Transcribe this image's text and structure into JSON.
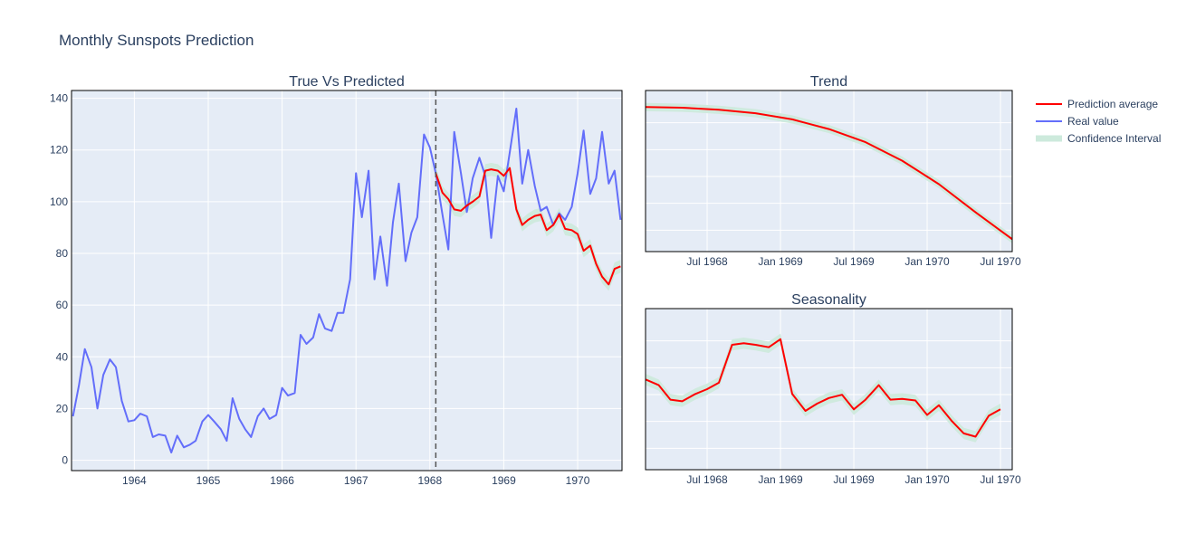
{
  "figure_title": "Monthly Sunspots Prediction",
  "colors": {
    "prediction": "#ff0000",
    "real": "#636efa",
    "confidence": "#cdeadc",
    "plot_bg": "#e5ecf6",
    "grid": "#ffffff",
    "text": "#2a3f5f",
    "cutoff_line": "#555555"
  },
  "legend": {
    "items": [
      {
        "label": "Prediction average",
        "kind": "line",
        "color": "#ff0000"
      },
      {
        "label": "Real value",
        "kind": "line",
        "color": "#636efa"
      },
      {
        "label": "Confidence Interval",
        "kind": "band",
        "color": "#cdeadc"
      }
    ]
  },
  "chart_data": [
    {
      "id": "main",
      "type": "line",
      "title": "True Vs Predicted",
      "xlim": [
        1963.15,
        1970.6
      ],
      "ylim": [
        -4,
        143
      ],
      "x_ticks": [
        {
          "v": 1964,
          "label": "1964"
        },
        {
          "v": 1965,
          "label": "1965"
        },
        {
          "v": 1966,
          "label": "1966"
        },
        {
          "v": 1967,
          "label": "1967"
        },
        {
          "v": 1968,
          "label": "1968"
        },
        {
          "v": 1969,
          "label": "1969"
        },
        {
          "v": 1970,
          "label": "1970"
        }
      ],
      "y_ticks": [
        {
          "v": 0,
          "label": "0"
        },
        {
          "v": 20,
          "label": "20"
        },
        {
          "v": 40,
          "label": "40"
        },
        {
          "v": 60,
          "label": "60"
        },
        {
          "v": 80,
          "label": "80"
        },
        {
          "v": 100,
          "label": "100"
        },
        {
          "v": 120,
          "label": "120"
        },
        {
          "v": 140,
          "label": "140"
        }
      ],
      "cutoff_x": 1968.08,
      "series": [
        {
          "name": "Real value",
          "style": "real",
          "points": [
            [
              1963.17,
              17
            ],
            [
              1963.25,
              29
            ],
            [
              1963.33,
              43
            ],
            [
              1963.42,
              36
            ],
            [
              1963.5,
              20
            ],
            [
              1963.58,
              33
            ],
            [
              1963.67,
              39
            ],
            [
              1963.75,
              36
            ],
            [
              1963.83,
              23
            ],
            [
              1963.92,
              15
            ],
            [
              1964.0,
              15.5
            ],
            [
              1964.08,
              18
            ],
            [
              1964.17,
              17
            ],
            [
              1964.25,
              9
            ],
            [
              1964.33,
              10
            ],
            [
              1964.42,
              9.5
            ],
            [
              1964.5,
              3
            ],
            [
              1964.58,
              9.5
            ],
            [
              1964.67,
              5
            ],
            [
              1964.75,
              6
            ],
            [
              1964.83,
              7.5
            ],
            [
              1964.92,
              15
            ],
            [
              1965.0,
              17.5
            ],
            [
              1965.08,
              15
            ],
            [
              1965.17,
              12
            ],
            [
              1965.25,
              7.5
            ],
            [
              1965.33,
              24
            ],
            [
              1965.42,
              16
            ],
            [
              1965.5,
              12
            ],
            [
              1965.58,
              9
            ],
            [
              1965.67,
              17
            ],
            [
              1965.75,
              20
            ],
            [
              1965.83,
              16
            ],
            [
              1965.92,
              17.5
            ],
            [
              1966.0,
              28
            ],
            [
              1966.08,
              25
            ],
            [
              1966.17,
              26
            ],
            [
              1966.25,
              48.5
            ],
            [
              1966.33,
              45
            ],
            [
              1966.42,
              47.5
            ],
            [
              1966.5,
              56.5
            ],
            [
              1966.58,
              51
            ],
            [
              1966.67,
              50
            ],
            [
              1966.75,
              57
            ],
            [
              1966.83,
              57
            ],
            [
              1966.92,
              70
            ],
            [
              1967.0,
              111
            ],
            [
              1967.08,
              94
            ],
            [
              1967.17,
              112
            ],
            [
              1967.25,
              70
            ],
            [
              1967.33,
              86.5
            ],
            [
              1967.42,
              67.5
            ],
            [
              1967.5,
              92
            ],
            [
              1967.58,
              107
            ],
            [
              1967.67,
              77
            ],
            [
              1967.75,
              88
            ],
            [
              1967.83,
              94
            ],
            [
              1967.92,
              126
            ],
            [
              1968.0,
              121
            ],
            [
              1968.08,
              111
            ],
            [
              1968.17,
              95
            ],
            [
              1968.25,
              81.5
            ],
            [
              1968.33,
              127
            ],
            [
              1968.42,
              111
            ],
            [
              1968.5,
              96
            ],
            [
              1968.58,
              109
            ],
            [
              1968.67,
              117
            ],
            [
              1968.75,
              110
            ],
            [
              1968.83,
              86
            ],
            [
              1968.92,
              110
            ],
            [
              1969.0,
              104
            ],
            [
              1969.08,
              119
            ],
            [
              1969.17,
              136
            ],
            [
              1969.25,
              107
            ],
            [
              1969.33,
              120
            ],
            [
              1969.42,
              106
            ],
            [
              1969.5,
              96.5
            ],
            [
              1969.58,
              98
            ],
            [
              1969.67,
              91
            ],
            [
              1969.75,
              95.5
            ],
            [
              1969.83,
              93
            ],
            [
              1969.92,
              98
            ],
            [
              1970.0,
              111
            ],
            [
              1970.08,
              127.5
            ],
            [
              1970.17,
              103
            ],
            [
              1970.25,
              109
            ],
            [
              1970.33,
              127
            ],
            [
              1970.42,
              107
            ],
            [
              1970.5,
              112
            ],
            [
              1970.58,
              93
            ]
          ]
        },
        {
          "name": "Prediction average",
          "style": "prediction",
          "points": [
            [
              1968.08,
              111
            ],
            [
              1968.17,
              103.5
            ],
            [
              1968.25,
              101
            ],
            [
              1968.33,
              97
            ],
            [
              1968.42,
              96.5
            ],
            [
              1968.5,
              98.5
            ],
            [
              1968.58,
              100
            ],
            [
              1968.67,
              102
            ],
            [
              1968.75,
              112
            ],
            [
              1968.83,
              112.5
            ],
            [
              1968.92,
              112
            ],
            [
              1969.0,
              110
            ],
            [
              1969.08,
              113
            ],
            [
              1969.17,
              97
            ],
            [
              1969.25,
              91
            ],
            [
              1969.33,
              93
            ],
            [
              1969.42,
              94.5
            ],
            [
              1969.5,
              95
            ],
            [
              1969.58,
              89
            ],
            [
              1969.67,
              91
            ],
            [
              1969.75,
              95
            ],
            [
              1969.83,
              89.5
            ],
            [
              1969.92,
              89
            ],
            [
              1970.0,
              87.5
            ],
            [
              1970.08,
              81
            ],
            [
              1970.17,
              83
            ],
            [
              1970.25,
              76
            ],
            [
              1970.33,
              71
            ],
            [
              1970.42,
              68
            ],
            [
              1970.5,
              74
            ],
            [
              1970.58,
              75
            ]
          ]
        }
      ],
      "band": {
        "name": "Confidence Interval",
        "half_width": 2.5
      }
    },
    {
      "id": "trend",
      "type": "line",
      "title": "Trend",
      "xlim": [
        1968.08,
        1970.58
      ],
      "ylim": [
        -1.3,
        1.04
      ],
      "x_ticks": [
        {
          "v": 1968.5,
          "label": "Jul 1968"
        },
        {
          "v": 1969.0,
          "label": "Jan 1969"
        },
        {
          "v": 1969.5,
          "label": "Jul 1969"
        },
        {
          "v": 1970.0,
          "label": "Jan 1970"
        },
        {
          "v": 1970.5,
          "label": "Jul 1970"
        }
      ],
      "y_ticks": [],
      "series": [
        {
          "name": "Prediction average",
          "style": "prediction",
          "points": [
            [
              1968.08,
              0.8
            ],
            [
              1968.33,
              0.79
            ],
            [
              1968.58,
              0.76
            ],
            [
              1968.83,
              0.71
            ],
            [
              1969.08,
              0.62
            ],
            [
              1969.33,
              0.48
            ],
            [
              1969.58,
              0.29
            ],
            [
              1969.83,
              0.02
            ],
            [
              1970.08,
              -0.32
            ],
            [
              1970.33,
              -0.73
            ],
            [
              1970.58,
              -1.12
            ]
          ]
        }
      ],
      "band": {
        "name": "Confidence Interval",
        "half_width": 0.06
      }
    },
    {
      "id": "seasonality",
      "type": "line",
      "title": "Seasonality",
      "xlim": [
        1968.08,
        1970.58
      ],
      "ylim": [
        -10,
        10
      ],
      "x_ticks": [
        {
          "v": 1968.5,
          "label": "Jul 1968"
        },
        {
          "v": 1969.0,
          "label": "Jan 1969"
        },
        {
          "v": 1969.5,
          "label": "Jul 1969"
        },
        {
          "v": 1970.0,
          "label": "Jan 1970"
        },
        {
          "v": 1970.5,
          "label": "Jul 1970"
        }
      ],
      "y_ticks": [],
      "series": [
        {
          "name": "Prediction average",
          "style": "prediction",
          "points": [
            [
              1968.08,
              1.2
            ],
            [
              1968.17,
              0.5
            ],
            [
              1968.25,
              -1.3
            ],
            [
              1968.33,
              -1.5
            ],
            [
              1968.42,
              -0.6
            ],
            [
              1968.5,
              0
            ],
            [
              1968.58,
              0.8
            ],
            [
              1968.67,
              5.5
            ],
            [
              1968.75,
              5.7
            ],
            [
              1968.83,
              5.5
            ],
            [
              1968.92,
              5.2
            ],
            [
              1969.0,
              6.2
            ],
            [
              1969.08,
              -0.6
            ],
            [
              1969.17,
              -2.7
            ],
            [
              1969.25,
              -1.8
            ],
            [
              1969.33,
              -1.1
            ],
            [
              1969.42,
              -0.7
            ],
            [
              1969.5,
              -2.5
            ],
            [
              1969.58,
              -1.3
            ],
            [
              1969.67,
              0.5
            ],
            [
              1969.75,
              -1.3
            ],
            [
              1969.83,
              -1.2
            ],
            [
              1969.92,
              -1.4
            ],
            [
              1970.0,
              -3.2
            ],
            [
              1970.08,
              -2.0
            ],
            [
              1970.17,
              -4.0
            ],
            [
              1970.25,
              -5.5
            ],
            [
              1970.33,
              -5.9
            ],
            [
              1970.42,
              -3.3
            ],
            [
              1970.5,
              -2.5
            ]
          ]
        }
      ],
      "band": {
        "name": "Confidence Interval",
        "half_width": 0.7
      }
    }
  ]
}
